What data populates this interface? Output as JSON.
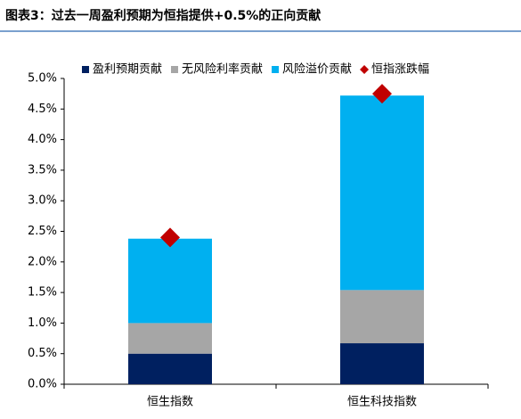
{
  "chart_data": {
    "type": "bar",
    "stacked": true,
    "title": "图表3：过去一周盈利预期为恒指提供+0.5%的正向贡献",
    "categories": [
      "恒生指数",
      "恒生科技指数"
    ],
    "series": [
      {
        "name": "盈利预期贡献",
        "color": "#002060",
        "values": [
          0.5,
          0.67
        ]
      },
      {
        "name": "无风险利率贡献",
        "color": "#a6a6a6",
        "values": [
          0.5,
          0.87
        ]
      },
      {
        "name": "风险溢价贡献",
        "color": "#00b0f0",
        "values": [
          1.38,
          3.18
        ]
      },
      {
        "name": "恒指涨跌幅",
        "color": "#c00000",
        "type": "scatter",
        "values": [
          2.4,
          4.75
        ]
      }
    ],
    "ylim": [
      0,
      5
    ],
    "yticks": [
      {
        "value": 0,
        "label": "0.0%"
      },
      {
        "value": 0.5,
        "label": "0.5%"
      },
      {
        "value": 1,
        "label": "1.0%"
      },
      {
        "value": 1.5,
        "label": "1.5%"
      },
      {
        "value": 2,
        "label": "2.0%"
      },
      {
        "value": 2.5,
        "label": "2.5%"
      },
      {
        "value": 3,
        "label": "3.0%"
      },
      {
        "value": 3.5,
        "label": "3.5%"
      },
      {
        "value": 4,
        "label": "4.0%"
      },
      {
        "value": 4.5,
        "label": "4.5%"
      },
      {
        "value": 5,
        "label": "5.0%"
      }
    ],
    "grid": false,
    "legend": "top"
  }
}
